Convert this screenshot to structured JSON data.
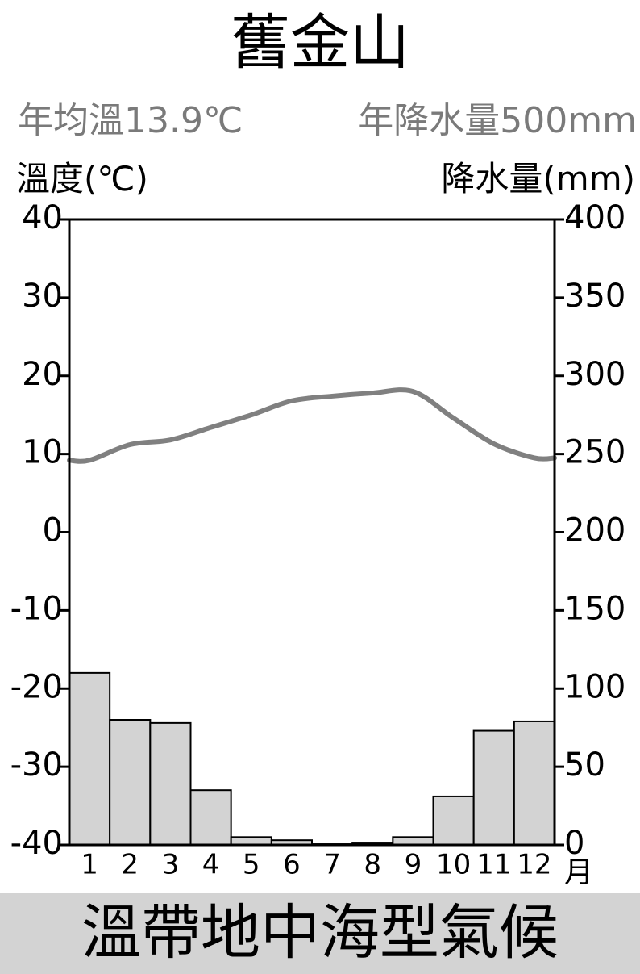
{
  "title": "舊金山",
  "stats": {
    "temperature": "年均溫13.9℃",
    "precipitation": "年降水量500mm"
  },
  "climate_type": "溫帶地中海型氣候",
  "colors": {
    "temperature_line": "#808080",
    "precip_bar_fill": "#d3d3d3",
    "footer_band": "#d3d3d3",
    "stat_text": "#7a7a7a"
  },
  "chart_data": {
    "type": "bar",
    "categories": [
      "1",
      "2",
      "3",
      "4",
      "5",
      "6",
      "7",
      "8",
      "9",
      "10",
      "11",
      "12"
    ],
    "x_unit_label": "月",
    "ylabel": "溫度(℃)",
    "y2label": "降水量(mm)",
    "ylim": [
      -40,
      40
    ],
    "y2lim": [
      0,
      400
    ],
    "yticks": [
      "40",
      "30",
      "20",
      "10",
      "0",
      "-10",
      "-20",
      "-30",
      "-40"
    ],
    "y2ticks": [
      "400",
      "350",
      "300",
      "250",
      "200",
      "150",
      "100",
      "50",
      "0"
    ],
    "series": [
      {
        "axis": "right",
        "type": "bar",
        "values": [
          110,
          80,
          78,
          35,
          5,
          3,
          0.5,
          1,
          5,
          31,
          73,
          79
        ]
      },
      {
        "axis": "left",
        "type": "line",
        "values": [
          9.2,
          11.2,
          11.8,
          13.4,
          15.0,
          16.8,
          17.4,
          17.8,
          18.0,
          14.6,
          11.3,
          9.5
        ]
      }
    ],
    "grid": false,
    "legend": "none"
  }
}
